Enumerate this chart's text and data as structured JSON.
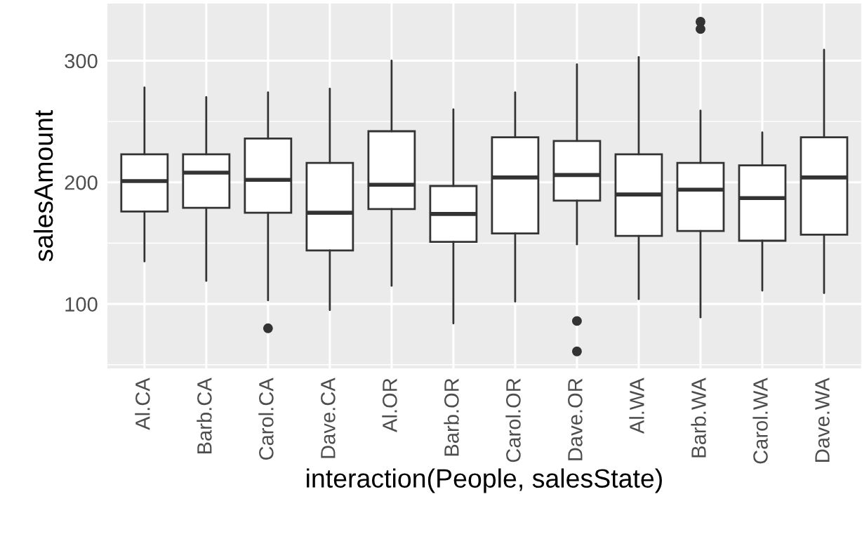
{
  "chart_data": {
    "type": "box",
    "xlabel": "interaction(People, salesState)",
    "ylabel": "salesAmount",
    "categories": [
      "Al.CA",
      "Barb.CA",
      "Carol.CA",
      "Dave.CA",
      "Al.OR",
      "Barb.OR",
      "Carol.OR",
      "Dave.OR",
      "Al.WA",
      "Barb.WA",
      "Carol.WA",
      "Dave.WA"
    ],
    "boxes": [
      {
        "low": 135,
        "q1": 176,
        "median": 201,
        "q3": 223,
        "high": 278
      },
      {
        "low": 119,
        "q1": 179,
        "median": 208,
        "q3": 223,
        "high": 270
      },
      {
        "low": 103,
        "q1": 175,
        "median": 202,
        "q3": 236,
        "high": 274,
        "outliers": [
          80
        ]
      },
      {
        "low": 95,
        "q1": 144,
        "median": 175,
        "q3": 216,
        "high": 277
      },
      {
        "low": 115,
        "q1": 178,
        "median": 198,
        "q3": 242,
        "high": 300
      },
      {
        "low": 84,
        "q1": 151,
        "median": 174,
        "q3": 197,
        "high": 260
      },
      {
        "low": 102,
        "q1": 158,
        "median": 204,
        "q3": 237,
        "high": 274
      },
      {
        "low": 149,
        "q1": 185,
        "median": 206,
        "q3": 234,
        "high": 297,
        "outliers": [
          86,
          61
        ]
      },
      {
        "low": 104,
        "q1": 156,
        "median": 190,
        "q3": 223,
        "high": 303
      },
      {
        "low": 89,
        "q1": 160,
        "median": 194,
        "q3": 216,
        "high": 259,
        "outliers": [
          332,
          326
        ]
      },
      {
        "low": 111,
        "q1": 152,
        "median": 187,
        "q3": 214,
        "high": 241
      },
      {
        "low": 109,
        "q1": 157,
        "median": 204,
        "q3": 237,
        "high": 309
      }
    ],
    "ylim": [
      47,
      347
    ],
    "yticks": [
      100,
      200,
      300
    ],
    "grid": true
  }
}
